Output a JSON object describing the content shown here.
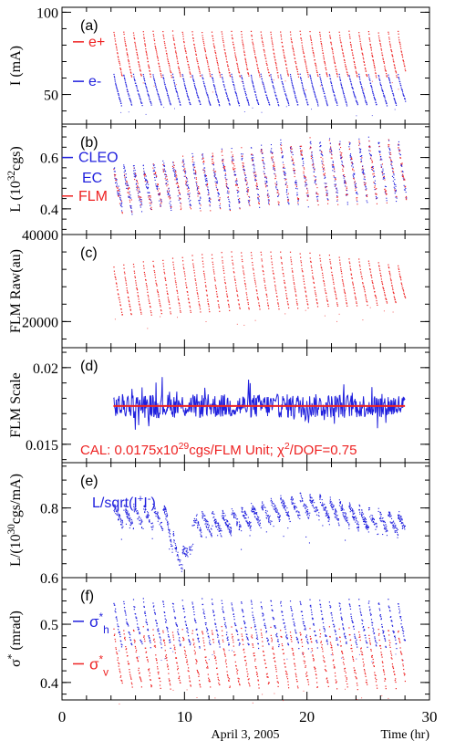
{
  "figure": {
    "x_axis_label": "Time (hr)",
    "date_label": "April 3, 2005",
    "x_range": [
      0,
      30
    ],
    "x_ticks": [
      "0",
      "10",
      "20",
      "30"
    ],
    "colors": {
      "red": "#ee2222",
      "blue": "#1f1fdd",
      "axis": "#000000"
    }
  },
  "chart_data": [
    {
      "type": "scatter",
      "panel": "(a)",
      "ylabel": "I (mA)",
      "ylim": [
        32,
        103
      ],
      "y_ticks": [
        50,
        100
      ],
      "series": [
        {
          "name": "e+",
          "color": "#ee2222",
          "fill_period_hr": 0.8,
          "start_hr": 4.2,
          "end_hr": 28.0,
          "top": 88,
          "bottom": 60
        },
        {
          "name": "e-",
          "color": "#1f1fdd",
          "fill_period_hr": 0.8,
          "start_hr": 4.2,
          "end_hr": 28.0,
          "top": 62,
          "bottom": 43
        }
      ]
    },
    {
      "type": "scatter",
      "panel": "(b)",
      "ylabel": "L (10³²cgs)",
      "ylim": [
        0.3,
        0.73
      ],
      "y_ticks": [
        0.4,
        0.6
      ],
      "series": [
        {
          "name": "CLEO",
          "color": "#1f1fdd"
        },
        {
          "name": "EC",
          "color": "#1f1fdd"
        },
        {
          "name": "FLM",
          "color": "#ee2222"
        }
      ],
      "approx_profile": {
        "start_hr": 4.2,
        "end_hr": 28.0,
        "top": [
          0.55,
          0.66
        ],
        "bottom": [
          0.4,
          0.44
        ]
      }
    },
    {
      "type": "scatter",
      "panel": "(c)",
      "ylabel": "FLM Raw(au)",
      "ylim": [
        14000,
        40000
      ],
      "y_ticks": [
        20000,
        40000
      ],
      "series": [
        {
          "name": "",
          "color": "#ee2222",
          "start_hr": 4.2,
          "end_hr": 28.0,
          "top": [
            29000,
            36000
          ],
          "bottom": [
            21000,
            24000
          ]
        }
      ]
    },
    {
      "type": "line",
      "panel": "(d)",
      "ylabel": "FLM Scale",
      "ylim": [
        0.0138,
        0.0213
      ],
      "y_ticks": [
        0.015,
        0.02
      ],
      "calibration": 0.0175,
      "annotation": "CAL: 0.0175x10²⁹cgs/FLM Unit;  χ²/DOF=0.75",
      "series": [
        {
          "name": "",
          "color": "#1f1fdd",
          "start_hr": 4.2,
          "end_hr": 28.0,
          "mean": 0.0175,
          "spread": 0.0012
        }
      ]
    },
    {
      "type": "scatter",
      "panel": "(e)",
      "ylabel": "L/(10³⁰cgs/mA)",
      "ylim": [
        0.6,
        0.93
      ],
      "y_ticks": [
        0.6,
        0.8
      ],
      "series": [
        {
          "name": "L/sqrt(I⁺I⁻)",
          "color": "#1f1fdd",
          "start_hr": 4.2,
          "end_hr": 28.0,
          "level": [
            0.77,
            0.82
          ]
        }
      ]
    },
    {
      "type": "scatter",
      "panel": "(f)",
      "ylabel": "σ* (mrad)",
      "ylim": [
        0.37,
        0.58
      ],
      "y_ticks": [
        0.4,
        0.5
      ],
      "series": [
        {
          "name": "σh*",
          "color": "#1f1fdd",
          "start_hr": 4.2,
          "end_hr": 28.0,
          "top": 0.54,
          "bottom": 0.46
        },
        {
          "name": "σv*",
          "color": "#ee2222",
          "start_hr": 4.2,
          "end_hr": 28.0,
          "top": 0.49,
          "bottom": 0.39
        }
      ]
    }
  ]
}
